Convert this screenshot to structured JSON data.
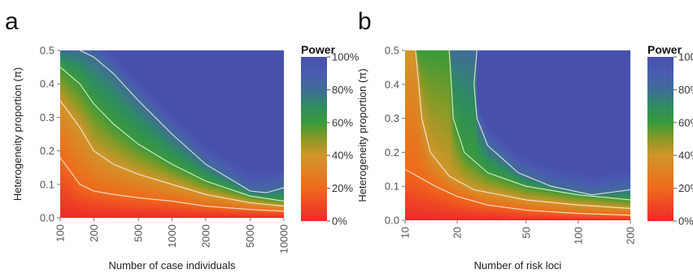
{
  "chart_data": [
    {
      "type": "heatmap",
      "panel_label": "a",
      "xlabel": "Number of case individuals",
      "ylabel": "Heterogeneity proportion (π)",
      "x_scale": "log",
      "x_ticks": [
        "100",
        "200",
        "500",
        "1000",
        "2000",
        "5000",
        "10000"
      ],
      "x_tick_values": [
        100,
        200,
        500,
        1000,
        2000,
        5000,
        10000
      ],
      "xlim": [
        100,
        10000
      ],
      "y_ticks": [
        "0.0",
        "0.1",
        "0.2",
        "0.3",
        "0.4",
        "0.5"
      ],
      "y_tick_values": [
        0.0,
        0.1,
        0.2,
        0.3,
        0.4,
        0.5
      ],
      "ylim": [
        0.0,
        0.5
      ],
      "z_label": "Power",
      "contour_levels": [
        0.2,
        0.4,
        0.6,
        0.8
      ],
      "contours": [
        {
          "level": 0.2,
          "points": [
            [
              100,
              0.18
            ],
            [
              150,
              0.1
            ],
            [
              200,
              0.08
            ],
            [
              300,
              0.07
            ],
            [
              500,
              0.06
            ],
            [
              1000,
              0.05
            ],
            [
              2000,
              0.035
            ],
            [
              5000,
              0.025
            ],
            [
              10000,
              0.02
            ]
          ]
        },
        {
          "level": 0.4,
          "points": [
            [
              100,
              0.35
            ],
            [
              150,
              0.27
            ],
            [
              200,
              0.2
            ],
            [
              300,
              0.16
            ],
            [
              500,
              0.13
            ],
            [
              1000,
              0.1
            ],
            [
              2000,
              0.07
            ],
            [
              5000,
              0.045
            ],
            [
              10000,
              0.035
            ]
          ]
        },
        {
          "level": 0.6,
          "points": [
            [
              100,
              0.45
            ],
            [
              150,
              0.4
            ],
            [
              200,
              0.34
            ],
            [
              300,
              0.28
            ],
            [
              500,
              0.22
            ],
            [
              1000,
              0.16
            ],
            [
              2000,
              0.11
            ],
            [
              5000,
              0.065
            ],
            [
              10000,
              0.05
            ]
          ]
        },
        {
          "level": 0.8,
          "points": [
            [
              150,
              0.5
            ],
            [
              200,
              0.48
            ],
            [
              300,
              0.43
            ],
            [
              500,
              0.35
            ],
            [
              1000,
              0.25
            ],
            [
              2000,
              0.16
            ],
            [
              5000,
              0.08
            ],
            [
              7000,
              0.075
            ],
            [
              10000,
              0.09
            ]
          ]
        }
      ]
    },
    {
      "type": "heatmap",
      "panel_label": "b",
      "xlabel": "Number of risk loci",
      "ylabel": "Heterogeneity proportion (π)",
      "x_scale": "log",
      "x_ticks": [
        "10",
        "20",
        "50",
        "100",
        "200"
      ],
      "x_tick_values": [
        10,
        20,
        50,
        100,
        200
      ],
      "xlim": [
        10,
        200
      ],
      "y_ticks": [
        "0.0",
        "0.1",
        "0.2",
        "0.3",
        "0.4",
        "0.5"
      ],
      "y_tick_values": [
        0.0,
        0.1,
        0.2,
        0.3,
        0.4,
        0.5
      ],
      "ylim": [
        0.0,
        0.5
      ],
      "z_label": "Power",
      "contour_levels": [
        0.2,
        0.4,
        0.6,
        0.8
      ],
      "contours": [
        {
          "level": 0.2,
          "points": [
            [
              10,
              0.15
            ],
            [
              15,
              0.1
            ],
            [
              20,
              0.07
            ],
            [
              30,
              0.045
            ],
            [
              50,
              0.03
            ],
            [
              100,
              0.02
            ],
            [
              200,
              0.015
            ]
          ]
        },
        {
          "level": 0.4,
          "points": [
            [
              11.5,
              0.5
            ],
            [
              12,
              0.4
            ],
            [
              12.5,
              0.3
            ],
            [
              14,
              0.2
            ],
            [
              18,
              0.13
            ],
            [
              25,
              0.09
            ],
            [
              50,
              0.06
            ],
            [
              100,
              0.045
            ],
            [
              200,
              0.035
            ]
          ]
        },
        {
          "level": 0.6,
          "points": [
            [
              18,
              0.5
            ],
            [
              18.5,
              0.4
            ],
            [
              19,
              0.3
            ],
            [
              22,
              0.2
            ],
            [
              30,
              0.14
            ],
            [
              50,
              0.1
            ],
            [
              100,
              0.075
            ],
            [
              200,
              0.06
            ]
          ]
        },
        {
          "level": 0.8,
          "points": [
            [
              26,
              0.5
            ],
            [
              25,
              0.4
            ],
            [
              26,
              0.3
            ],
            [
              30,
              0.22
            ],
            [
              45,
              0.14
            ],
            [
              70,
              0.1
            ],
            [
              120,
              0.075
            ],
            [
              200,
              0.09
            ]
          ]
        }
      ]
    }
  ],
  "legend": {
    "title": "Power",
    "labels": [
      "100%",
      "80%",
      "60%",
      "40%",
      "20%",
      "0%"
    ],
    "values": [
      1.0,
      0.8,
      0.6,
      0.4,
      0.2,
      0.0
    ],
    "color_stops": [
      {
        "value": 0.0,
        "color": "#ee2a2a"
      },
      {
        "value": 0.2,
        "color": "#ef6a1c"
      },
      {
        "value": 0.4,
        "color": "#d2952a"
      },
      {
        "value": 0.5,
        "color": "#8a9a26"
      },
      {
        "value": 0.6,
        "color": "#3a9a3a"
      },
      {
        "value": 0.7,
        "color": "#2e8c60"
      },
      {
        "value": 0.8,
        "color": "#3f6d97"
      },
      {
        "value": 0.9,
        "color": "#4a5cb0"
      },
      {
        "value": 1.0,
        "color": "#4750ad"
      }
    ]
  },
  "contour_color": "#f3efe2"
}
